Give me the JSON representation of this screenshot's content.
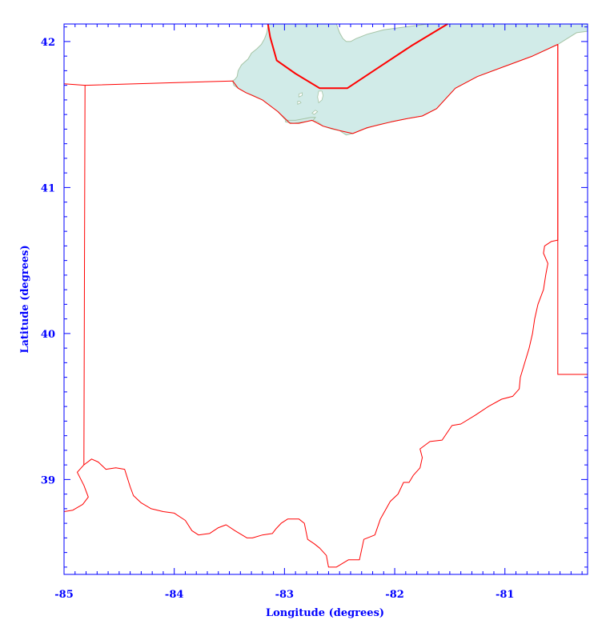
{
  "chart_data": {
    "type": "map",
    "xlabel": "Longitude (degrees)",
    "ylabel": "Latitude (degrees)",
    "xlim": [
      -85,
      -80.25
    ],
    "ylim": [
      38.35,
      42.12
    ],
    "x_ticks": [
      {
        "value": -85,
        "label": "-85"
      },
      {
        "value": -84,
        "label": "-84"
      },
      {
        "value": -83,
        "label": "-83"
      },
      {
        "value": -82,
        "label": "-82"
      },
      {
        "value": -81,
        "label": "-81"
      }
    ],
    "y_ticks": [
      {
        "value": 39,
        "label": "39"
      },
      {
        "value": 40,
        "label": "40"
      },
      {
        "value": 41,
        "label": "41"
      },
      {
        "value": 42,
        "label": "42"
      }
    ],
    "colors": {
      "axis": "#0000ff",
      "boundary": "#ff0000",
      "water_fill": "#d1ebe8",
      "water_edge": "#a5c4a5",
      "background": "#ffffff"
    },
    "features": {
      "lake": {
        "name": "Lake Erie",
        "kind": "water",
        "outline": [
          [
            -83.47,
            41.73
          ],
          [
            -83.45,
            41.74
          ],
          [
            -83.43,
            41.76
          ],
          [
            -83.42,
            41.8
          ],
          [
            -83.39,
            41.84
          ],
          [
            -83.36,
            41.86
          ],
          [
            -83.33,
            41.88
          ],
          [
            -83.3,
            41.92
          ],
          [
            -83.25,
            41.95
          ],
          [
            -83.21,
            41.98
          ],
          [
            -83.18,
            42.02
          ],
          [
            -83.16,
            42.06
          ],
          [
            -83.15,
            42.1
          ],
          [
            -83.15,
            42.12
          ],
          [
            -82.53,
            42.12
          ],
          [
            -82.52,
            42.1
          ],
          [
            -82.5,
            42.06
          ],
          [
            -82.47,
            42.02
          ],
          [
            -82.44,
            42.0
          ],
          [
            -82.4,
            42.0
          ],
          [
            -82.35,
            42.02
          ],
          [
            -82.25,
            42.05
          ],
          [
            -82.1,
            42.08
          ],
          [
            -81.9,
            42.1
          ],
          [
            -81.7,
            42.12
          ],
          [
            -80.25,
            42.12
          ],
          [
            -80.25,
            42.07
          ],
          [
            -80.35,
            42.06
          ],
          [
            -80.52,
            41.98
          ],
          [
            -80.75,
            41.9
          ],
          [
            -81.0,
            41.83
          ],
          [
            -81.25,
            41.76
          ],
          [
            -81.45,
            41.68
          ],
          [
            -81.62,
            41.54
          ],
          [
            -81.75,
            41.49
          ],
          [
            -81.9,
            41.47
          ],
          [
            -82.03,
            41.45
          ],
          [
            -82.15,
            41.43
          ],
          [
            -82.28,
            41.4
          ],
          [
            -82.38,
            41.37
          ],
          [
            -82.44,
            41.36
          ],
          [
            -82.5,
            41.39
          ],
          [
            -82.57,
            41.4
          ],
          [
            -82.65,
            41.42
          ],
          [
            -82.7,
            41.45
          ],
          [
            -82.76,
            41.46
          ],
          [
            -82.81,
            41.45
          ],
          [
            -82.87,
            41.44
          ],
          [
            -82.95,
            41.44
          ],
          [
            -83.0,
            41.47
          ],
          [
            -83.06,
            41.52
          ],
          [
            -83.13,
            41.56
          ],
          [
            -83.2,
            41.6
          ],
          [
            -83.28,
            41.63
          ],
          [
            -83.35,
            41.65
          ],
          [
            -83.42,
            41.68
          ],
          [
            -83.46,
            41.7
          ]
        ]
      },
      "bay_strip": {
        "name": "Sandusky Bay",
        "kind": "water",
        "outline": [
          [
            -82.99,
            41.46
          ],
          [
            -82.9,
            41.46
          ],
          [
            -82.83,
            41.47
          ],
          [
            -82.76,
            41.48
          ],
          [
            -82.72,
            41.48
          ],
          [
            -82.74,
            41.46
          ],
          [
            -82.82,
            41.45
          ],
          [
            -82.92,
            41.44
          ],
          [
            -82.99,
            41.45
          ]
        ]
      },
      "islands": [
        {
          "name": "Kelleys Island",
          "outline": [
            [
              -82.69,
              41.58
            ],
            [
              -82.66,
              41.6
            ],
            [
              -82.65,
              41.63
            ],
            [
              -82.66,
              41.66
            ],
            [
              -82.69,
              41.66
            ],
            [
              -82.7,
              41.62
            ]
          ]
        },
        {
          "name": "South Bass Island",
          "outline": [
            [
              -82.87,
              41.62
            ],
            [
              -82.84,
              41.63
            ],
            [
              -82.84,
              41.65
            ],
            [
              -82.87,
              41.64
            ]
          ]
        },
        {
          "name": "Catawba Island",
          "outline": [
            [
              -82.88,
              41.57
            ],
            [
              -82.85,
              41.58
            ],
            [
              -82.86,
              41.59
            ],
            [
              -82.88,
              41.59
            ]
          ]
        },
        {
          "name": "Marblehead",
          "outline": [
            [
              -82.75,
              41.51
            ],
            [
              -82.72,
              41.53
            ],
            [
              -82.7,
              41.52
            ],
            [
              -82.73,
              41.5
            ]
          ]
        }
      ],
      "ohio_boundary": {
        "name": "Ohio state boundary",
        "kind": "boundary",
        "outline": [
          [
            -84.81,
            41.7
          ],
          [
            -83.47,
            41.73
          ],
          [
            -83.42,
            41.68
          ],
          [
            -83.35,
            41.65
          ],
          [
            -83.2,
            41.6
          ],
          [
            -83.06,
            41.52
          ],
          [
            -82.95,
            41.44
          ],
          [
            -82.87,
            41.44
          ],
          [
            -82.75,
            41.46
          ],
          [
            -82.65,
            41.42
          ],
          [
            -82.5,
            41.39
          ],
          [
            -82.38,
            41.37
          ],
          [
            -82.25,
            41.41
          ],
          [
            -82.03,
            41.45
          ],
          [
            -81.9,
            41.47
          ],
          [
            -81.75,
            41.49
          ],
          [
            -81.62,
            41.54
          ],
          [
            -81.45,
            41.68
          ],
          [
            -81.25,
            41.76
          ],
          [
            -81.0,
            41.83
          ],
          [
            -80.75,
            41.9
          ],
          [
            -80.52,
            41.98
          ],
          [
            -80.52,
            40.64
          ],
          [
            -80.58,
            40.63
          ],
          [
            -80.64,
            40.6
          ],
          [
            -80.65,
            40.55
          ],
          [
            -80.61,
            40.48
          ],
          [
            -80.63,
            40.4
          ],
          [
            -80.65,
            40.3
          ],
          [
            -80.7,
            40.2
          ],
          [
            -80.73,
            40.1
          ],
          [
            -80.75,
            40.0
          ],
          [
            -80.78,
            39.9
          ],
          [
            -80.82,
            39.8
          ],
          [
            -80.86,
            39.7
          ],
          [
            -80.87,
            39.62
          ],
          [
            -80.93,
            39.57
          ],
          [
            -81.03,
            39.55
          ],
          [
            -81.15,
            39.5
          ],
          [
            -81.27,
            39.44
          ],
          [
            -81.4,
            39.38
          ],
          [
            -81.48,
            39.37
          ],
          [
            -81.57,
            39.27
          ],
          [
            -81.68,
            39.26
          ],
          [
            -81.77,
            39.21
          ],
          [
            -81.75,
            39.15
          ],
          [
            -81.77,
            39.08
          ],
          [
            -81.83,
            39.03
          ],
          [
            -81.87,
            38.98
          ],
          [
            -81.92,
            38.98
          ],
          [
            -81.97,
            38.9
          ],
          [
            -82.04,
            38.85
          ],
          [
            -82.13,
            38.73
          ],
          [
            -82.18,
            38.62
          ],
          [
            -82.28,
            38.59
          ],
          [
            -82.32,
            38.45
          ],
          [
            -82.42,
            38.45
          ],
          [
            -82.53,
            38.4
          ],
          [
            -82.6,
            38.4
          ],
          [
            -82.62,
            38.48
          ],
          [
            -82.68,
            38.53
          ],
          [
            -82.73,
            38.56
          ],
          [
            -82.79,
            38.59
          ],
          [
            -82.82,
            38.7
          ],
          [
            -82.87,
            38.73
          ],
          [
            -82.97,
            38.73
          ],
          [
            -83.03,
            38.7
          ],
          [
            -83.08,
            38.66
          ],
          [
            -83.11,
            38.63
          ],
          [
            -83.2,
            38.62
          ],
          [
            -83.29,
            38.6
          ],
          [
            -83.34,
            38.6
          ],
          [
            -83.45,
            38.65
          ],
          [
            -83.53,
            38.69
          ],
          [
            -83.6,
            38.67
          ],
          [
            -83.68,
            38.63
          ],
          [
            -83.78,
            38.62
          ],
          [
            -83.84,
            38.65
          ],
          [
            -83.9,
            38.72
          ],
          [
            -84.0,
            38.77
          ],
          [
            -84.1,
            38.78
          ],
          [
            -84.21,
            38.8
          ],
          [
            -84.3,
            38.84
          ],
          [
            -84.37,
            38.89
          ],
          [
            -84.4,
            38.95
          ],
          [
            -84.45,
            39.07
          ],
          [
            -84.53,
            39.08
          ],
          [
            -84.62,
            39.07
          ],
          [
            -84.69,
            39.12
          ],
          [
            -84.75,
            39.14
          ],
          [
            -84.82,
            39.1
          ]
        ]
      },
      "indiana_ohio_line": {
        "name": "Indiana-Ohio line",
        "outline": [
          [
            -84.82,
            39.1
          ],
          [
            -84.81,
            41.7
          ],
          [
            -85.0,
            41.71
          ]
        ]
      },
      "indiana_kentucky_line": {
        "name": "Indiana-Kentucky line",
        "outline": [
          [
            -84.82,
            39.1
          ],
          [
            -84.88,
            39.05
          ],
          [
            -84.82,
            38.96
          ],
          [
            -84.78,
            38.88
          ],
          [
            -84.83,
            38.83
          ],
          [
            -84.92,
            38.79
          ],
          [
            -85.0,
            38.78
          ]
        ]
      },
      "pa_wv_line": {
        "name": "Pennsylvania-West Virginia line",
        "outline": [
          [
            -80.52,
            41.98
          ],
          [
            -80.52,
            39.72
          ],
          [
            -80.25,
            39.72
          ]
        ]
      },
      "lake_border": {
        "name": "US-Canada border in Lake Erie",
        "outline": [
          [
            -83.15,
            42.12
          ],
          [
            -83.13,
            42.03
          ],
          [
            -83.07,
            41.87
          ],
          [
            -82.9,
            41.78
          ],
          [
            -82.68,
            41.68
          ],
          [
            -82.43,
            41.68
          ],
          [
            -82.15,
            41.82
          ],
          [
            -81.85,
            41.97
          ],
          [
            -81.52,
            42.12
          ]
        ]
      }
    }
  }
}
